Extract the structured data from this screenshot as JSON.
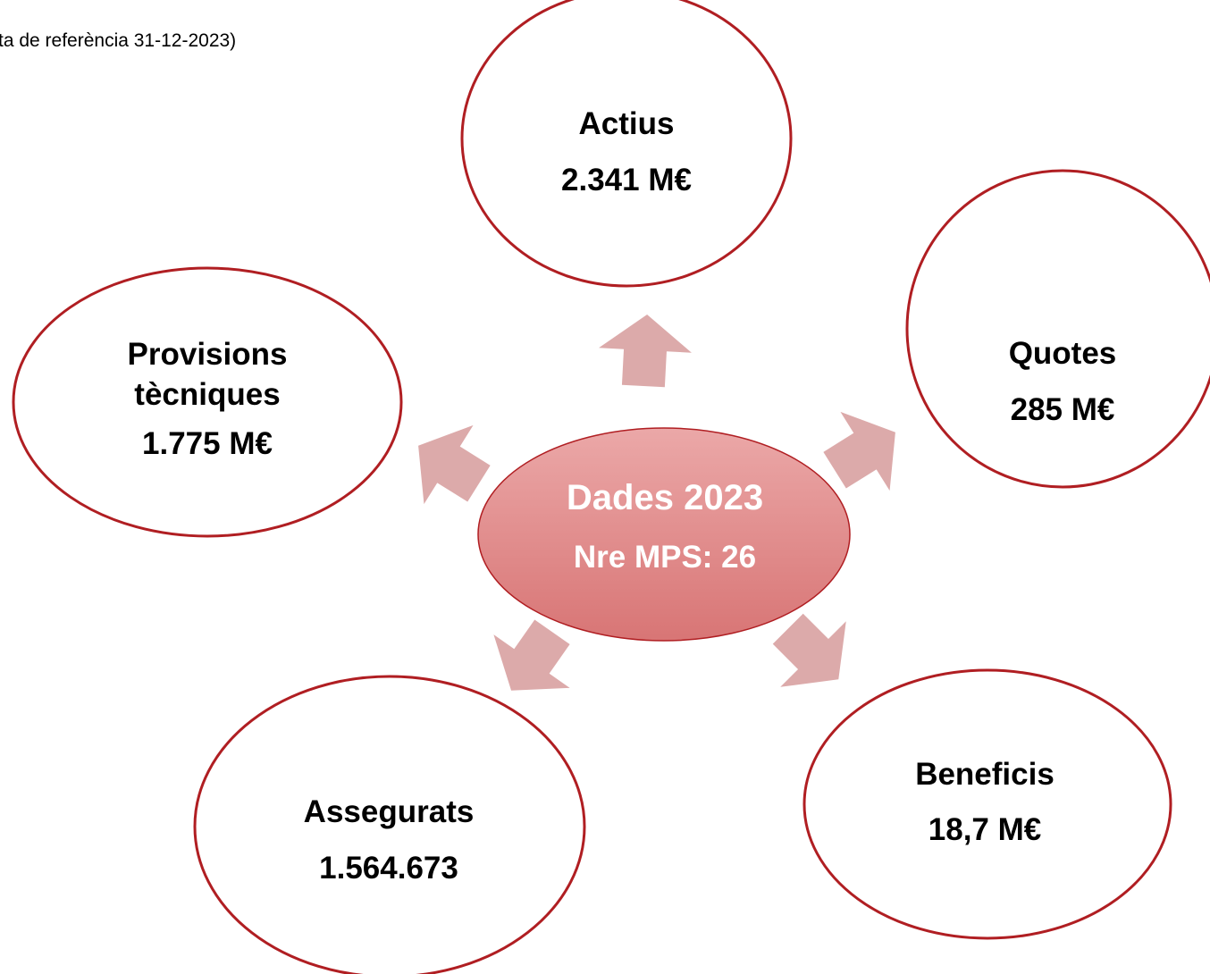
{
  "header": {
    "subtitle": "ta de referència 31-12-2023)"
  },
  "center": {
    "title": "Dades 2023",
    "label": "Nre MPS: 26"
  },
  "nodes": [
    {
      "lines": [
        "Actius",
        "2.341 M€"
      ]
    },
    {
      "lines": [
        "Quotes",
        "285 M€"
      ]
    },
    {
      "lines": [
        "Beneficis",
        "18,7 M€"
      ]
    },
    {
      "lines": [
        "Assegurats",
        "1.564.673"
      ]
    },
    {
      "lines": [
        "Provisions",
        "tècniques",
        "1.775 M€"
      ]
    }
  ]
}
